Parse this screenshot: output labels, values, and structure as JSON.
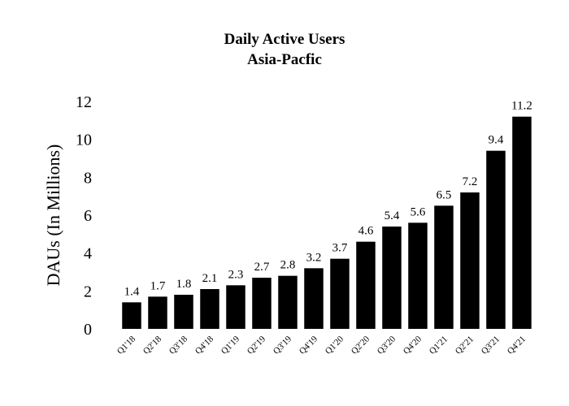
{
  "chart_data": {
    "type": "bar",
    "title": "Daily Active Users",
    "subtitle": "Asia-Pacfic",
    "xlabel": "",
    "ylabel": "DAUs (In Millions)",
    "ylim": [
      0,
      12
    ],
    "yticks": [
      0,
      2,
      4,
      6,
      8,
      10,
      12
    ],
    "grid": false,
    "categories": [
      "Q1'18",
      "Q2'18",
      "Q3'18",
      "Q4'18",
      "Q1'19",
      "Q2'19",
      "Q3'19",
      "Q4'19",
      "Q1'20",
      "Q2'20",
      "Q3'20",
      "Q4'20",
      "Q1'21",
      "Q2'21",
      "Q3'21",
      "Q4'21"
    ],
    "values": [
      1.4,
      1.7,
      1.8,
      2.1,
      2.3,
      2.7,
      2.8,
      3.2,
      3.7,
      4.6,
      5.4,
      5.6,
      6.5,
      7.2,
      9.4,
      11.2
    ],
    "bar_color": "#000000"
  }
}
